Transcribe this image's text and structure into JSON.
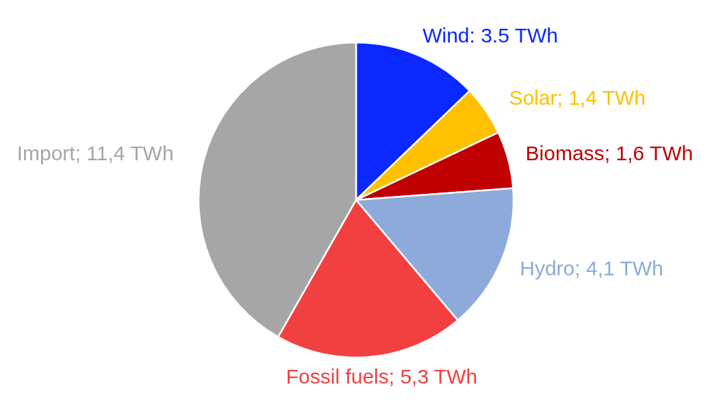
{
  "chart_data": {
    "type": "pie",
    "categories": [
      "Wind",
      "Solar",
      "Biomass",
      "Hydro",
      "Fossil fuels",
      "Import"
    ],
    "values": [
      3.5,
      1.4,
      1.6,
      4.1,
      5.3,
      11.4
    ],
    "colors": [
      "#0a28ff",
      "#ffc000",
      "#c00000",
      "#8eaadb",
      "#f24040",
      "#a6a6a6"
    ],
    "value_labels": [
      ": 3.5 TWh",
      "; 1,4 TWh",
      "; 1,6 TWh",
      "; 4,1 TWh",
      "; 5,3 TWh",
      "; 11,4 TWh"
    ]
  }
}
